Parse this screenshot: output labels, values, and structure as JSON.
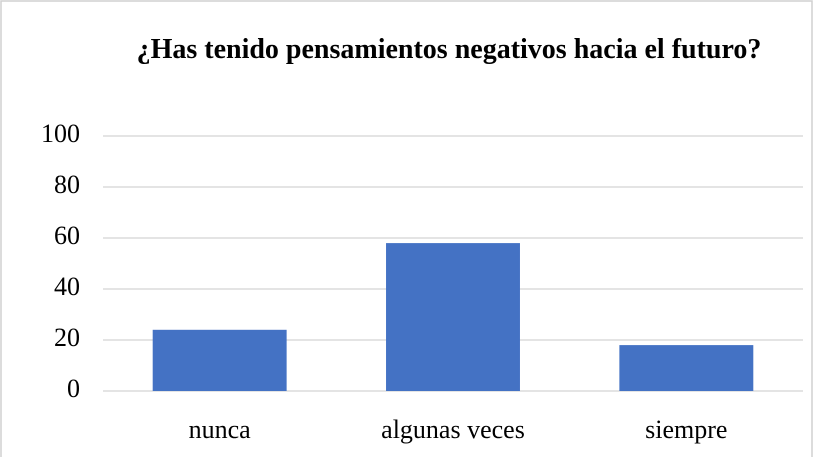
{
  "chart_data": {
    "type": "bar",
    "title": "¿Has tenido pensamientos negativos hacia el futuro?",
    "categories": [
      "nunca",
      "algunas veces",
      "siempre"
    ],
    "values": [
      24,
      58,
      18
    ],
    "color": "#4472c4",
    "ylim": [
      0,
      100
    ],
    "yticks": [
      0,
      20,
      40,
      60,
      80,
      100
    ],
    "grid": true
  }
}
